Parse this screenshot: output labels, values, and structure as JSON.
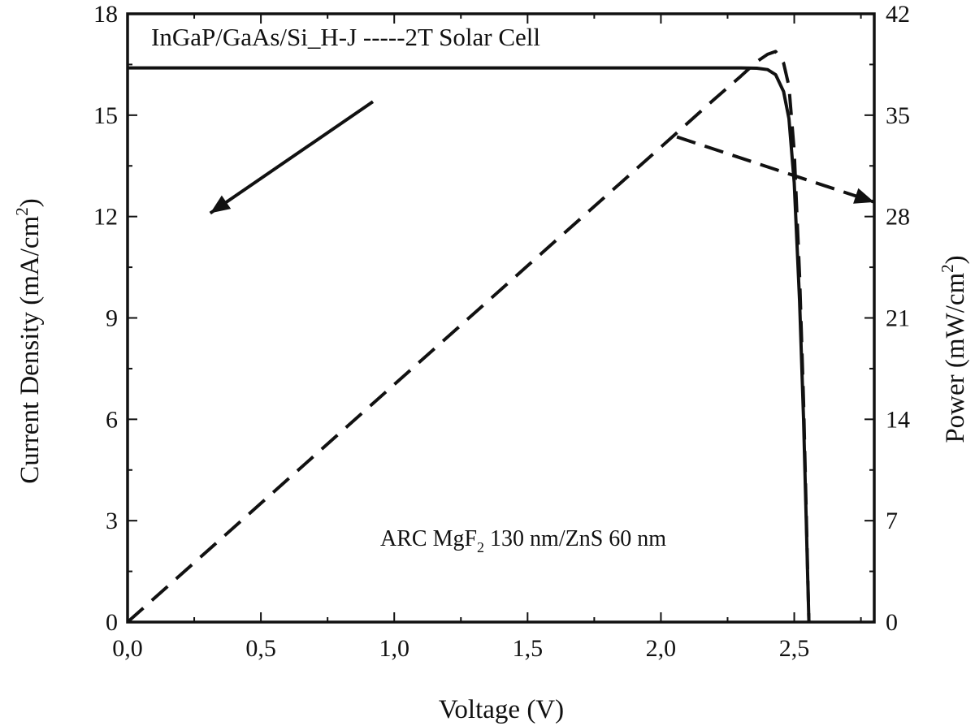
{
  "chart_data": {
    "type": "line",
    "title": "InGaP/GaAs/Si_H-J -----2T Solar Cell",
    "xlabel": "Voltage (V)",
    "ylabel": {
      "main": "Current Density (mA/cm",
      "sup": "2",
      "end": ")"
    },
    "y2label": {
      "main": "Power (mW/cm",
      "sup": "2",
      "end": ")"
    },
    "annotation": {
      "pre": "ARC MgF",
      "sub": "2",
      "post": " 130 nm/ZnS 60 nm"
    },
    "xlim": [
      0,
      2.8
    ],
    "ylim": [
      0,
      18
    ],
    "y2lim": [
      0,
      42
    ],
    "xticks": [
      "0,0",
      "0,5",
      "1,0",
      "1,5",
      "2,0",
      "2,5"
    ],
    "xtick_values": [
      0,
      0.5,
      1.0,
      1.5,
      2.0,
      2.5
    ],
    "yticks": [
      "0",
      "3",
      "6",
      "9",
      "12",
      "15",
      "18"
    ],
    "ytick_values": [
      0,
      3,
      6,
      9,
      12,
      15,
      18
    ],
    "y2ticks": [
      "0",
      "7",
      "14",
      "21",
      "28",
      "35",
      "42"
    ],
    "y2tick_values": [
      0,
      7,
      14,
      21,
      28,
      35,
      42
    ],
    "series": [
      {
        "axis": "left",
        "style": "solid",
        "x": [
          0.0,
          0.5,
          1.0,
          1.5,
          2.0,
          2.2,
          2.3,
          2.36,
          2.4,
          2.43,
          2.46,
          2.48,
          2.5,
          2.52,
          2.535,
          2.545,
          2.55,
          2.555
        ],
        "y": [
          16.4,
          16.4,
          16.4,
          16.4,
          16.4,
          16.4,
          16.4,
          16.39,
          16.35,
          16.2,
          15.7,
          14.9,
          13.0,
          9.5,
          6.0,
          3.0,
          1.5,
          0.0
        ]
      },
      {
        "axis": "right",
        "style": "dashed",
        "x": [
          0.0,
          0.5,
          1.0,
          1.5,
          2.0,
          2.2,
          2.3,
          2.36,
          2.4,
          2.43,
          2.46,
          2.48,
          2.5,
          2.52,
          2.535,
          2.545,
          2.55,
          2.555
        ],
        "y": [
          0.0,
          8.2,
          16.4,
          24.6,
          32.8,
          36.1,
          37.7,
          38.7,
          39.2,
          39.4,
          38.6,
          37.0,
          32.5,
          23.9,
          15.2,
          7.6,
          3.8,
          0.0
        ]
      }
    ],
    "arrows": [
      {
        "from": [
          0.92,
          15.4
        ],
        "to": [
          0.31,
          12.1
        ],
        "axis": "left",
        "style": "solid"
      },
      {
        "from": [
          2.06,
          33.5
        ],
        "to": [
          2.8,
          29.0
        ],
        "axis": "right",
        "style": "dashed"
      }
    ],
    "grid": false,
    "legend": "none"
  }
}
